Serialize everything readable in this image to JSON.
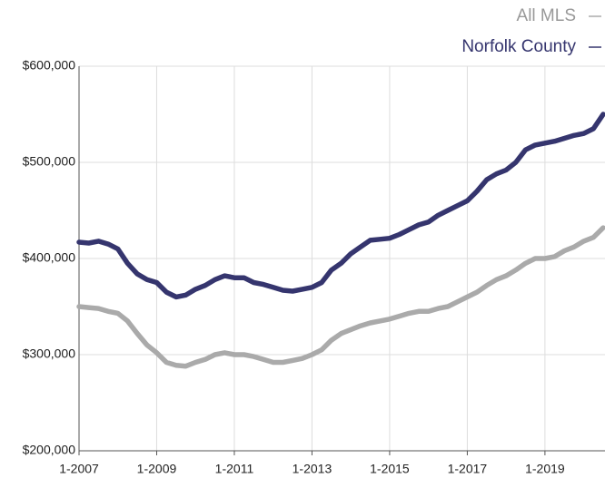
{
  "chart_data": {
    "type": "line",
    "x": [
      "1-2007",
      "4-2007",
      "7-2007",
      "10-2007",
      "1-2008",
      "4-2008",
      "7-2008",
      "10-2008",
      "1-2009",
      "4-2009",
      "7-2009",
      "10-2009",
      "1-2010",
      "4-2010",
      "7-2010",
      "10-2010",
      "1-2011",
      "4-2011",
      "7-2011",
      "10-2011",
      "1-2012",
      "4-2012",
      "7-2012",
      "10-2012",
      "1-2013",
      "4-2013",
      "7-2013",
      "10-2013",
      "1-2014",
      "4-2014",
      "7-2014",
      "10-2014",
      "1-2015",
      "4-2015",
      "7-2015",
      "10-2015",
      "1-2016",
      "4-2016",
      "7-2016",
      "10-2016",
      "1-2017",
      "4-2017",
      "7-2017",
      "10-2017",
      "1-2018",
      "4-2018",
      "7-2018",
      "10-2018",
      "1-2019",
      "4-2019",
      "7-2019",
      "10-2019",
      "1-2020",
      "4-2020",
      "7-2020"
    ],
    "series": [
      {
        "name": "All MLS",
        "color": "#aaaaaa",
        "values": [
          350000,
          349000,
          348000,
          345000,
          343000,
          335000,
          322000,
          310000,
          302000,
          292000,
          289000,
          288000,
          292000,
          295000,
          300000,
          302000,
          300000,
          300000,
          298000,
          295000,
          292000,
          292000,
          294000,
          296000,
          300000,
          305000,
          315000,
          322000,
          326000,
          330000,
          333000,
          335000,
          337000,
          340000,
          343000,
          345000,
          345000,
          348000,
          350000,
          355000,
          360000,
          365000,
          372000,
          378000,
          382000,
          388000,
          395000,
          400000,
          400000,
          402000,
          408000,
          412000,
          418000,
          422000,
          432000
        ]
      },
      {
        "name": "Norfolk County",
        "color": "#35356e",
        "values": [
          417000,
          416000,
          418000,
          415000,
          410000,
          395000,
          384000,
          378000,
          375000,
          365000,
          360000,
          362000,
          368000,
          372000,
          378000,
          382000,
          380000,
          380000,
          375000,
          373000,
          370000,
          367000,
          366000,
          368000,
          370000,
          375000,
          388000,
          395000,
          405000,
          412000,
          419000,
          420000,
          421000,
          425000,
          430000,
          435000,
          438000,
          445000,
          450000,
          455000,
          460000,
          470000,
          482000,
          488000,
          492000,
          500000,
          513000,
          518000,
          520000,
          522000,
          525000,
          528000,
          530000,
          535000,
          550000
        ]
      }
    ],
    "xlim": [
      "1-2007",
      "7-2020"
    ],
    "xticks": [
      "1-2007",
      "1-2009",
      "1-2011",
      "1-2013",
      "1-2015",
      "1-2017",
      "1-2019"
    ],
    "ylim": [
      200000,
      600000
    ],
    "yticks": [
      {
        "value": 200000,
        "label": "$200,000"
      },
      {
        "value": 300000,
        "label": "$300,000"
      },
      {
        "value": 400000,
        "label": "$400,000"
      },
      {
        "value": 500000,
        "label": "$500,000"
      },
      {
        "value": 600000,
        "label": "$600,000"
      }
    ],
    "grid": true
  }
}
